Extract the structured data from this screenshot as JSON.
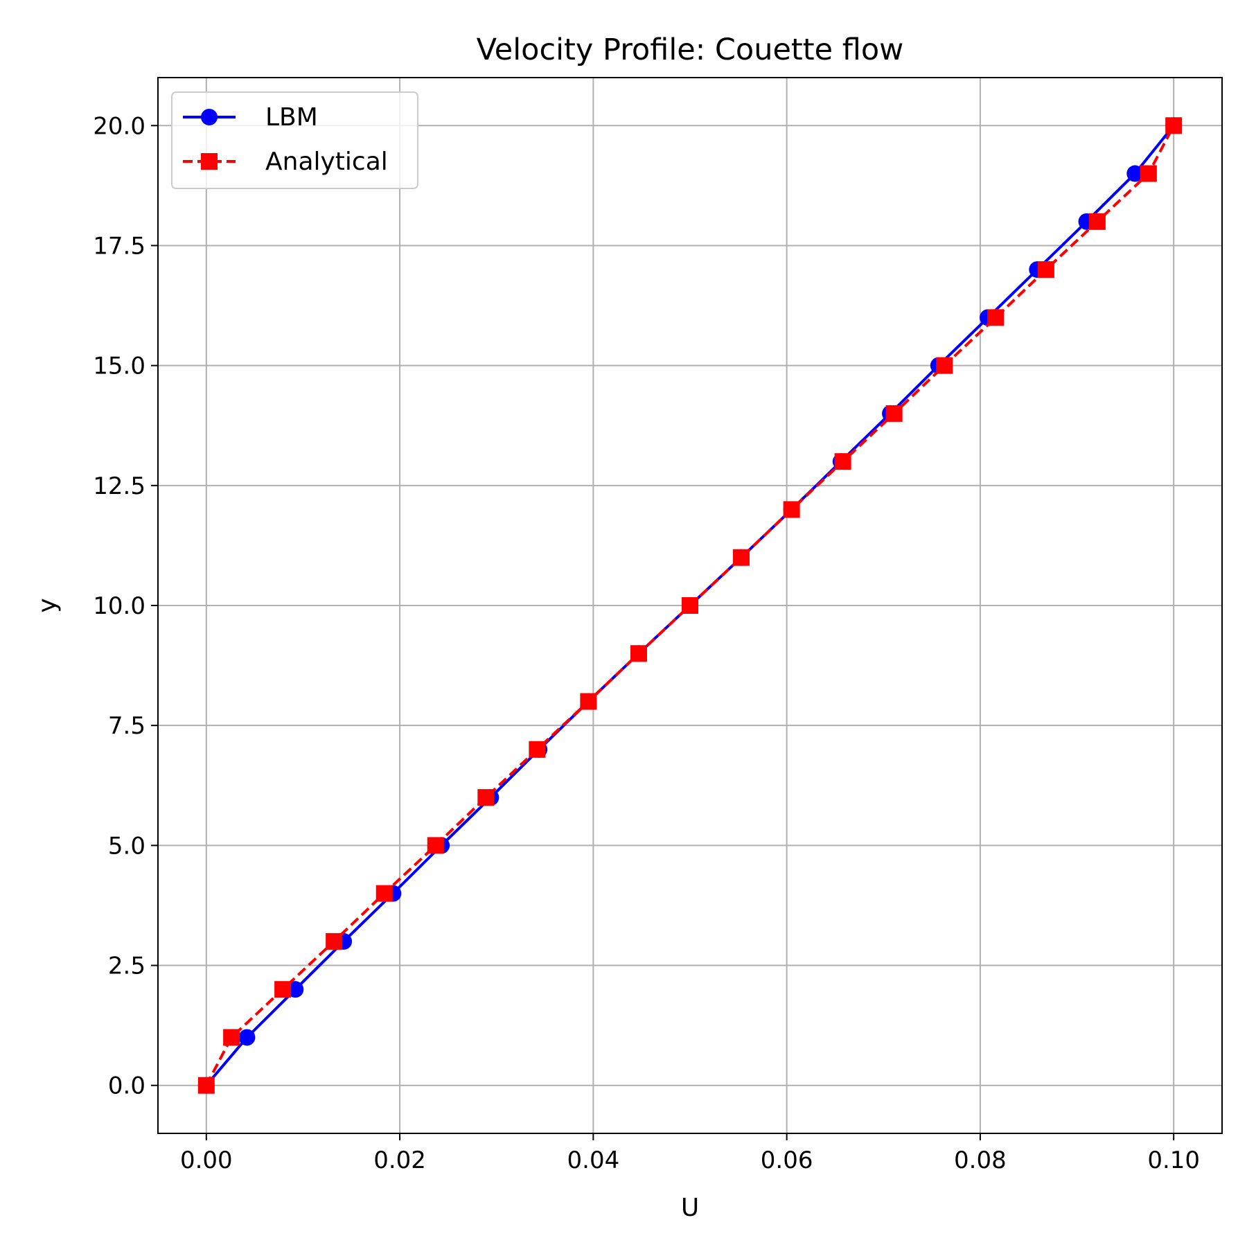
{
  "chart_data": {
    "type": "line",
    "title": "Velocity Profile: Couette flow",
    "xlabel": "U",
    "ylabel": "y",
    "xlim": [
      -0.005,
      0.105
    ],
    "ylim": [
      -1.0,
      21.0
    ],
    "xticks": [
      0.0,
      0.02,
      0.04,
      0.06,
      0.08,
      0.1
    ],
    "xtick_labels": [
      "0.00",
      "0.02",
      "0.04",
      "0.06",
      "0.08",
      "0.10"
    ],
    "yticks": [
      0.0,
      2.5,
      5.0,
      7.5,
      10.0,
      12.5,
      15.0,
      17.5,
      20.0
    ],
    "ytick_labels": [
      "0.0",
      "2.5",
      "5.0",
      "7.5",
      "10.0",
      "12.5",
      "15.0",
      "17.5",
      "20.0"
    ],
    "grid": true,
    "legend_position": "top-left",
    "series": [
      {
        "name": "LBM",
        "color": "#0000ff",
        "line_style": "solid",
        "marker": "circle",
        "x": [
          0.0,
          0.0042,
          0.0092,
          0.0142,
          0.0193,
          0.0243,
          0.0294,
          0.0344,
          0.0395,
          0.0447,
          0.05,
          0.0553,
          0.0605,
          0.0656,
          0.0707,
          0.0757,
          0.0808,
          0.0859,
          0.091,
          0.096,
          0.1
        ],
        "y": [
          0,
          1,
          2,
          3,
          4,
          5,
          6,
          7,
          8,
          9,
          10,
          11,
          12,
          13,
          14,
          15,
          16,
          17,
          18,
          19,
          20
        ]
      },
      {
        "name": "Analytical",
        "color": "#ff0000",
        "line_style": "dashed",
        "marker": "square",
        "x": [
          0.0,
          0.0026,
          0.0079,
          0.0132,
          0.0184,
          0.0237,
          0.0289,
          0.0342,
          0.0395,
          0.0447,
          0.05,
          0.0553,
          0.0605,
          0.0658,
          0.0711,
          0.0763,
          0.0816,
          0.0868,
          0.0921,
          0.0974,
          0.1
        ],
        "y": [
          0,
          1,
          2,
          3,
          4,
          5,
          6,
          7,
          8,
          9,
          10,
          11,
          12,
          13,
          14,
          15,
          16,
          17,
          18,
          19,
          20
        ]
      }
    ]
  }
}
